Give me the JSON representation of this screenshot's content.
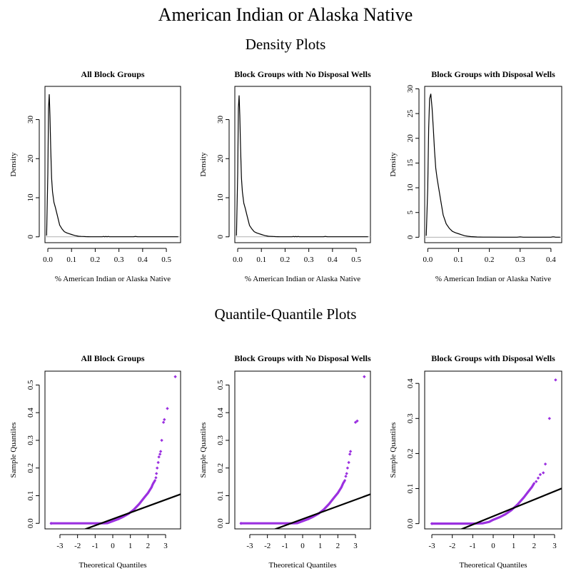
{
  "figure": {
    "title": "American Indian or Alaska Native",
    "density_section_title": "Density Plots",
    "qq_section_title": "Quantile-Quantile Plots"
  },
  "colors": {
    "qq_points": "#9b30e0",
    "qq_line": "#000000",
    "density_curve": "#000000",
    "baseline": "#b0b0b0",
    "frame": "#000000"
  },
  "chart_data": [
    {
      "type": "line",
      "panel": "density-all",
      "title": "All Block Groups",
      "xlabel": "% American Indian or Alaska Native",
      "ylabel": "Density",
      "xlim": [
        -0.012,
        0.56
      ],
      "ylim": [
        -1.5,
        38.5
      ],
      "xticks": [
        0.0,
        0.1,
        0.2,
        0.3,
        0.4,
        0.5
      ],
      "xtick_labels": [
        "0.0",
        "0.1",
        "0.2",
        "0.3",
        "0.4",
        "0.5"
      ],
      "yticks": [
        0,
        10,
        20,
        30
      ],
      "ytick_labels": [
        "0",
        "10",
        "20",
        "30"
      ],
      "baseline_y": 0,
      "x": [
        -0.005,
        0.0,
        0.003,
        0.006,
        0.009,
        0.012,
        0.016,
        0.02,
        0.026,
        0.032,
        0.04,
        0.05,
        0.06,
        0.07,
        0.08,
        0.09,
        0.1,
        0.11,
        0.12,
        0.13,
        0.14,
        0.15,
        0.16,
        0.17,
        0.18,
        0.2,
        0.22,
        0.23,
        0.235,
        0.24,
        0.245,
        0.25,
        0.255,
        0.26,
        0.3,
        0.36,
        0.365,
        0.37,
        0.375,
        0.38,
        0.45,
        0.55
      ],
      "y": [
        0.3,
        16,
        33,
        36.5,
        31,
        23,
        15,
        11.5,
        8.8,
        7.5,
        5.5,
        3,
        2.0,
        1.3,
        1.0,
        0.8,
        0.6,
        0.4,
        0.25,
        0.15,
        0.1,
        0.08,
        0.05,
        0.03,
        0.02,
        0.01,
        0.01,
        0.01,
        0.1,
        0.01,
        0.1,
        0.01,
        0.1,
        0.01,
        0.01,
        0.01,
        0.05,
        0.1,
        0.05,
        0.01,
        0.01,
        0.01
      ]
    },
    {
      "type": "line",
      "panel": "density-no-wells",
      "title": "Block Groups with No Disposal Wells",
      "xlabel": "% American Indian or Alaska Native",
      "ylabel": "Density",
      "xlim": [
        -0.012,
        0.56
      ],
      "ylim": [
        -1.5,
        38.5
      ],
      "xticks": [
        0.0,
        0.1,
        0.2,
        0.3,
        0.4,
        0.5
      ],
      "xtick_labels": [
        "0.0",
        "0.1",
        "0.2",
        "0.3",
        "0.4",
        "0.5"
      ],
      "yticks": [
        0,
        10,
        20,
        30
      ],
      "ytick_labels": [
        "0",
        "10",
        "20",
        "30"
      ],
      "baseline_y": 0,
      "x": [
        -0.005,
        0.0,
        0.003,
        0.006,
        0.009,
        0.012,
        0.016,
        0.02,
        0.026,
        0.032,
        0.04,
        0.05,
        0.06,
        0.07,
        0.08,
        0.09,
        0.1,
        0.11,
        0.12,
        0.13,
        0.14,
        0.15,
        0.16,
        0.17,
        0.18,
        0.2,
        0.22,
        0.23,
        0.235,
        0.24,
        0.245,
        0.25,
        0.255,
        0.26,
        0.3,
        0.36,
        0.365,
        0.37,
        0.375,
        0.38,
        0.45,
        0.55
      ],
      "y": [
        0.3,
        16,
        33,
        36.2,
        31,
        23,
        15,
        11.5,
        8.6,
        7.3,
        5.3,
        2.9,
        2.0,
        1.3,
        1.0,
        0.8,
        0.6,
        0.4,
        0.25,
        0.15,
        0.1,
        0.08,
        0.05,
        0.03,
        0.02,
        0.01,
        0.01,
        0.01,
        0.1,
        0.01,
        0.1,
        0.01,
        0.1,
        0.01,
        0.01,
        0.01,
        0.05,
        0.1,
        0.05,
        0.01,
        0.01,
        0.01
      ]
    },
    {
      "type": "line",
      "panel": "density-with-wells",
      "title": "Block Groups with Disposal Wells",
      "xlabel": "% American Indian or Alaska Native",
      "ylabel": "Density",
      "xlim": [
        -0.01,
        0.435
      ],
      "ylim": [
        -1.1,
        30.5
      ],
      "xticks": [
        0.0,
        0.1,
        0.2,
        0.3,
        0.4
      ],
      "xtick_labels": [
        "0.0",
        "0.1",
        "0.2",
        "0.3",
        "0.4"
      ],
      "yticks": [
        0,
        5,
        10,
        15,
        20,
        25,
        30
      ],
      "ytick_labels": [
        "0",
        "5",
        "10",
        "15",
        "20",
        "25",
        "30"
      ],
      "baseline_y": 0,
      "x": [
        -0.005,
        0.0,
        0.003,
        0.006,
        0.01,
        0.014,
        0.018,
        0.022,
        0.026,
        0.03,
        0.036,
        0.042,
        0.05,
        0.06,
        0.07,
        0.08,
        0.09,
        0.1,
        0.11,
        0.12,
        0.13,
        0.14,
        0.16,
        0.18,
        0.2,
        0.25,
        0.29,
        0.3,
        0.31,
        0.35,
        0.4,
        0.405,
        0.41,
        0.415,
        0.43
      ],
      "y": [
        0.3,
        10,
        22,
        28,
        29,
        26,
        22,
        17.5,
        14,
        12,
        9.8,
        7.5,
        4.5,
        2.7,
        1.8,
        1.2,
        0.9,
        0.7,
        0.5,
        0.3,
        0.2,
        0.12,
        0.05,
        0.03,
        0.02,
        0.01,
        0.01,
        0.08,
        0.01,
        0.01,
        0.01,
        0.08,
        0.08,
        0.01,
        0.01
      ]
    },
    {
      "type": "scatter",
      "panel": "qq-all",
      "title": "All Block Groups",
      "xlabel": "Theoretical Quantiles",
      "ylabel": "Sample Quantiles",
      "xlim": [
        -3.85,
        3.85
      ],
      "ylim": [
        -0.02,
        0.55
      ],
      "xticks": [
        -3,
        -2,
        -1,
        0,
        1,
        2,
        3
      ],
      "xtick_labels": [
        "-3",
        "-2",
        "-1",
        "0",
        "1",
        "2",
        "3"
      ],
      "yticks": [
        0.0,
        0.1,
        0.2,
        0.3,
        0.4,
        0.5
      ],
      "ytick_labels": [
        "0.0",
        "0.1",
        "0.2",
        "0.3",
        "0.4",
        "0.5"
      ],
      "reference_line": {
        "intercept": 0.0155,
        "slope": 0.0233
      },
      "curve": {
        "x": [
          -3.5,
          -2.0,
          -1.0,
          -0.5,
          -0.3,
          0.0,
          0.3,
          0.6,
          0.9,
          1.2,
          1.5,
          1.8,
          2.0,
          2.1,
          2.2,
          2.25,
          2.3,
          2.35,
          2.4
        ],
        "y": [
          0.0,
          0.0,
          0.0,
          0.0,
          0.001,
          0.008,
          0.015,
          0.024,
          0.035,
          0.05,
          0.07,
          0.094,
          0.11,
          0.12,
          0.13,
          0.138,
          0.145,
          0.15,
          0.155
        ]
      },
      "points": {
        "x": [
          -3.5,
          2.45,
          2.48,
          2.52,
          2.58,
          2.62,
          2.68,
          2.72,
          2.78,
          2.88,
          2.93,
          3.1,
          3.55
        ],
        "y": [
          0.0,
          0.165,
          0.18,
          0.2,
          0.22,
          0.24,
          0.25,
          0.26,
          0.3,
          0.365,
          0.375,
          0.415,
          0.53
        ]
      }
    },
    {
      "type": "scatter",
      "panel": "qq-no-wells",
      "title": "Block Groups with No Disposal Wells",
      "xlabel": "Theoretical Quantiles",
      "ylabel": "Sample Quantiles",
      "xlim": [
        -3.85,
        3.85
      ],
      "ylim": [
        -0.02,
        0.55
      ],
      "xticks": [
        -3,
        -2,
        -1,
        0,
        1,
        2,
        3
      ],
      "xtick_labels": [
        "-3",
        "-2",
        "-1",
        "0",
        "1",
        "2",
        "3"
      ],
      "yticks": [
        0.0,
        0.1,
        0.2,
        0.3,
        0.4,
        0.5
      ],
      "ytick_labels": [
        "0.0",
        "0.1",
        "0.2",
        "0.3",
        "0.4",
        "0.5"
      ],
      "reference_line": {
        "intercept": 0.0155,
        "slope": 0.0233
      },
      "curve": {
        "x": [
          -3.5,
          -2.0,
          -1.0,
          -0.5,
          -0.3,
          0.0,
          0.3,
          0.6,
          0.9,
          1.2,
          1.5,
          1.8,
          2.0,
          2.1,
          2.2,
          2.3,
          2.35,
          2.4
        ],
        "y": [
          0.0,
          0.0,
          0.0,
          0.0,
          0.001,
          0.008,
          0.015,
          0.024,
          0.035,
          0.05,
          0.07,
          0.094,
          0.11,
          0.12,
          0.13,
          0.145,
          0.15,
          0.155
        ]
      },
      "points": {
        "x": [
          -3.5,
          2.45,
          2.5,
          2.55,
          2.62,
          2.68,
          2.72,
          3.0,
          3.1,
          3.5
        ],
        "y": [
          0.0,
          0.17,
          0.18,
          0.2,
          0.22,
          0.25,
          0.26,
          0.365,
          0.37,
          0.53
        ]
      }
    },
    {
      "type": "scatter",
      "panel": "qq-with-wells",
      "title": "Block Groups with Disposal Wells",
      "xlabel": "Theoretical Quantiles",
      "ylabel": "Sample Quantiles",
      "xlim": [
        -3.35,
        3.35
      ],
      "ylim": [
        -0.015,
        0.435
      ],
      "xticks": [
        -3,
        -2,
        -1,
        0,
        1,
        2,
        3
      ],
      "xtick_labels": [
        "-3",
        "-2",
        "-1",
        "0",
        "1",
        "2",
        "3"
      ],
      "yticks": [
        0.0,
        0.1,
        0.2,
        0.3,
        0.4
      ],
      "ytick_labels": [
        "0.0",
        "0.1",
        "0.2",
        "0.3",
        "0.4"
      ],
      "reference_line": {
        "intercept": 0.021,
        "slope": 0.0237
      },
      "curve": {
        "x": [
          -3.0,
          -2.0,
          -1.0,
          -0.5,
          -0.2,
          0.0,
          0.3,
          0.6,
          0.9,
          1.2,
          1.5,
          1.7,
          1.9,
          2.0
        ],
        "y": [
          0.0,
          0.0,
          0.0,
          0.001,
          0.005,
          0.011,
          0.018,
          0.027,
          0.039,
          0.055,
          0.075,
          0.09,
          0.105,
          0.115
        ]
      },
      "points": {
        "x": [
          -3.0,
          2.1,
          2.2,
          2.3,
          2.45,
          2.55,
          2.75,
          3.05
        ],
        "y": [
          0.0,
          0.12,
          0.13,
          0.14,
          0.145,
          0.17,
          0.3,
          0.41
        ]
      }
    }
  ]
}
